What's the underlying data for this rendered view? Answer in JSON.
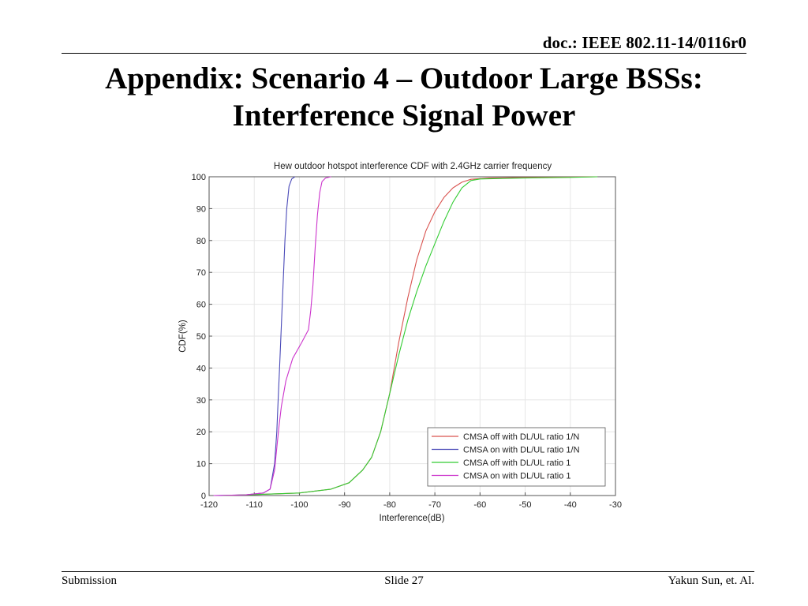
{
  "header": {
    "doc_id": "doc.: IEEE 802.11-14/0116r0"
  },
  "slide": {
    "title_line1": "Appendix: Scenario 4 – Outdoor Large BSSs:",
    "title_line2": "Interference Signal Power"
  },
  "footer": {
    "left": "Submission",
    "center": "Slide 27",
    "right": "Yakun Sun, et. Al."
  },
  "chart_data": {
    "type": "line",
    "title": "Hew outdoor hotspot interference CDF with 2.4GHz carrier frequency",
    "xlabel": "Interference(dB)",
    "ylabel": "CDF(%)",
    "xlim": [
      -120,
      -30
    ],
    "ylim": [
      0,
      100
    ],
    "xticks": [
      -120,
      -110,
      -100,
      -90,
      -80,
      -70,
      -60,
      -50,
      -40,
      -30
    ],
    "yticks": [
      0,
      10,
      20,
      30,
      40,
      50,
      60,
      70,
      80,
      90,
      100
    ],
    "grid": true,
    "legend_position": "bottom-right",
    "series": [
      {
        "name": "CMSA off with DL/UL ratio 1/N",
        "color": "#d9534f",
        "points": [
          [
            -117,
            0
          ],
          [
            -110,
            0.3
          ],
          [
            -100,
            0.8
          ],
          [
            -93,
            2
          ],
          [
            -89,
            4
          ],
          [
            -86,
            8
          ],
          [
            -84,
            12
          ],
          [
            -82,
            20
          ],
          [
            -80,
            32
          ],
          [
            -78,
            48
          ],
          [
            -76,
            62
          ],
          [
            -74,
            74
          ],
          [
            -72,
            83
          ],
          [
            -70,
            89
          ],
          [
            -68,
            93.5
          ],
          [
            -66,
            96.5
          ],
          [
            -64,
            98.3
          ],
          [
            -62,
            99.2
          ],
          [
            -58,
            99.6
          ],
          [
            -50,
            99.8
          ],
          [
            -40,
            99.9
          ],
          [
            -34,
            100
          ]
        ]
      },
      {
        "name": "CMSA on with DL/UL ratio 1/N",
        "color": "#4a4ab8",
        "points": [
          [
            -119,
            0
          ],
          [
            -112,
            0.2
          ],
          [
            -108,
            0.8
          ],
          [
            -106.5,
            2
          ],
          [
            -105.5,
            10
          ],
          [
            -105,
            20
          ],
          [
            -104.7,
            30
          ],
          [
            -104.4,
            40
          ],
          [
            -104.1,
            50
          ],
          [
            -103.8,
            60
          ],
          [
            -103.5,
            70
          ],
          [
            -103.2,
            80
          ],
          [
            -102.8,
            90
          ],
          [
            -102.3,
            97
          ],
          [
            -101.7,
            99.3
          ],
          [
            -101,
            100
          ]
        ]
      },
      {
        "name": "CMSA off with DL/UL ratio 1",
        "color": "#33cc33",
        "points": [
          [
            -117,
            0
          ],
          [
            -110,
            0.3
          ],
          [
            -100,
            0.8
          ],
          [
            -93,
            2
          ],
          [
            -89,
            4
          ],
          [
            -86,
            8
          ],
          [
            -84,
            12
          ],
          [
            -82,
            20
          ],
          [
            -80,
            32
          ],
          [
            -78,
            44
          ],
          [
            -76,
            55
          ],
          [
            -74,
            64
          ],
          [
            -72,
            72
          ],
          [
            -70,
            79
          ],
          [
            -68,
            86
          ],
          [
            -66,
            92
          ],
          [
            -64,
            96.5
          ],
          [
            -62,
            98.8
          ],
          [
            -60,
            99.3
          ],
          [
            -50,
            99.6
          ],
          [
            -40,
            99.8
          ],
          [
            -34,
            100
          ]
        ]
      },
      {
        "name": "CMSA on with DL/UL ratio 1",
        "color": "#cc33cc",
        "points": [
          [
            -119,
            0
          ],
          [
            -112,
            0.2
          ],
          [
            -108,
            0.8
          ],
          [
            -106.5,
            2
          ],
          [
            -105.5,
            8
          ],
          [
            -105,
            15
          ],
          [
            -104.5,
            22
          ],
          [
            -104,
            28
          ],
          [
            -103,
            36
          ],
          [
            -101.5,
            43
          ],
          [
            -99.5,
            48
          ],
          [
            -98,
            52
          ],
          [
            -97.5,
            58
          ],
          [
            -97,
            66
          ],
          [
            -96.5,
            78
          ],
          [
            -96,
            88
          ],
          [
            -95.5,
            95
          ],
          [
            -95,
            98.5
          ],
          [
            -94.2,
            99.6
          ],
          [
            -93,
            100
          ]
        ]
      }
    ]
  }
}
